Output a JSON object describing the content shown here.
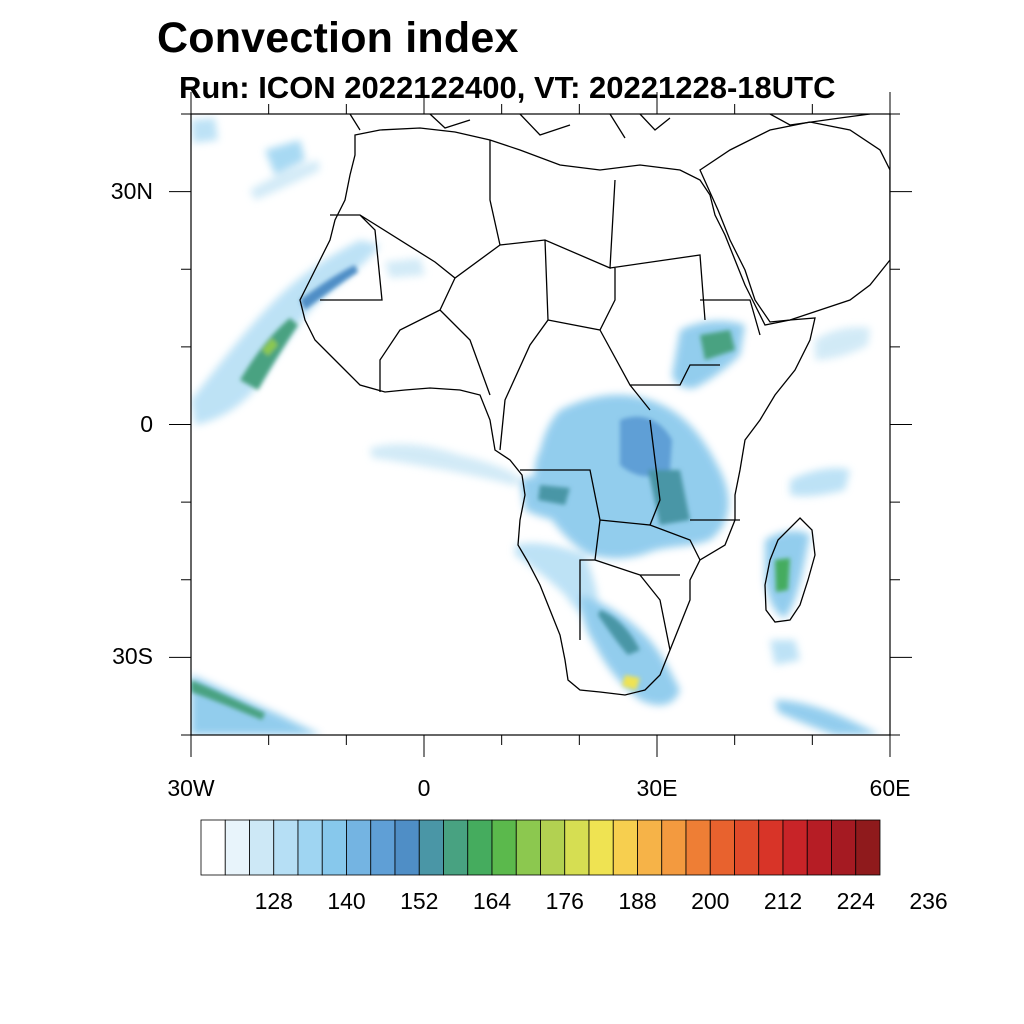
{
  "title": "Convection index",
  "subtitle": "Run: ICON 2022122400,  VT: 20221228-18UTC",
  "map": {
    "lon_range": [
      -30,
      60
    ],
    "lat_range": [
      -40,
      40
    ],
    "y_ticks": [
      {
        "lat": 30,
        "label": "30N"
      },
      {
        "lat": 0,
        "label": "0"
      },
      {
        "lat": -30,
        "label": "30S"
      }
    ],
    "x_ticks": [
      {
        "lon": -30,
        "label": "30W"
      },
      {
        "lon": 0,
        "label": "0"
      },
      {
        "lon": 30,
        "label": "30E"
      },
      {
        "lon": 60,
        "label": "60E"
      }
    ]
  },
  "colorbar": {
    "colors": [
      "#ffffff",
      "#e8f4fb",
      "#cde8f6",
      "#b6dff5",
      "#9fd5f2",
      "#87c8ec",
      "#74b4e2",
      "#5f9fd6",
      "#4f8ec6",
      "#4a96a6",
      "#48a281",
      "#45ac5e",
      "#5bb94c",
      "#8cc84f",
      "#b2d151",
      "#d6de52",
      "#efe352",
      "#f7cf4f",
      "#f6b348",
      "#f39a3f",
      "#ee7e35",
      "#e8622e",
      "#e04a2a",
      "#d83428",
      "#c82428",
      "#b61d25",
      "#a51a22",
      "#8f1a1c"
    ],
    "labels": [
      "128",
      "140",
      "152",
      "164",
      "176",
      "188",
      "200",
      "212",
      "224",
      "236"
    ]
  }
}
